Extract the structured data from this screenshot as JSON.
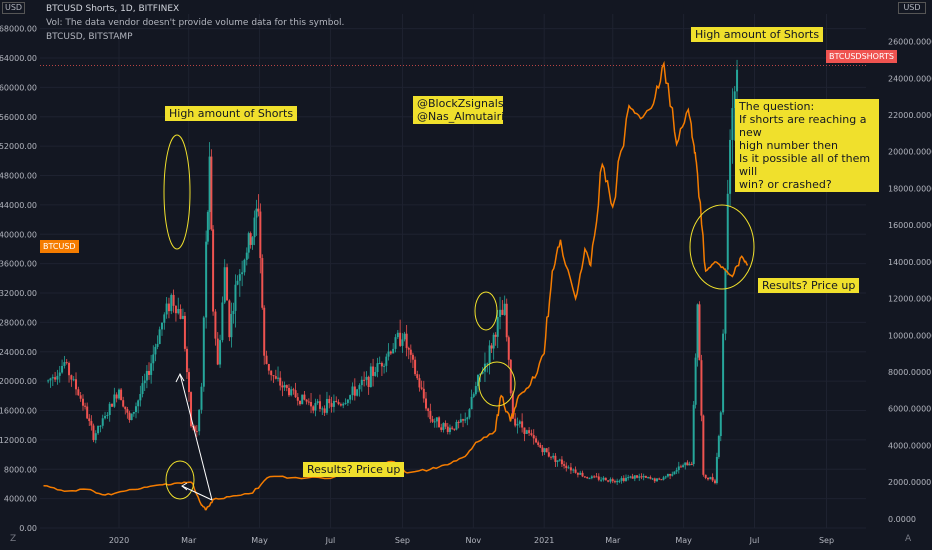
{
  "header": {
    "line1": "BTCUSD Shorts, 1D, BITFINEX",
    "line2": "Vol: The data vendor doesn't provide volume data for this symbol.",
    "line3": "BTCUSD, BITSTAMP"
  },
  "annotations": {
    "shorts_left": "High amount of Shorts",
    "shorts_right": "High amount of Shorts",
    "handles": [
      "@BlockZsignals",
      "@Nas_Almutairi"
    ],
    "question": [
      "The question:",
      "If shorts are reaching a new",
      "high number then",
      "Is it possible all of them will",
      "win? or crashed?"
    ],
    "results_left": "Results? Price up",
    "results_right": "Results? Price up"
  },
  "badges": {
    "btcusd": "BTCUSD",
    "shorts": "BTCUSDSHORTS",
    "unit_top": "USD",
    "unit_left": "USD",
    "corner_left": "Z",
    "corner_right": "A"
  },
  "colors": {
    "background": "#131722",
    "btcusd_line": "#f57c00",
    "candle_up": "#26a69a",
    "candle_down": "#ef5350",
    "callout": "#f0e02c",
    "badge_btcusd": "#f57c00",
    "badge_shorts": "#ef5350",
    "annotation_ring": "#f0e02c",
    "annotation_arrow": "#ffffff"
  },
  "chart_data": {
    "type": "line",
    "x_ticks": [
      "2020",
      "Mar",
      "May",
      "Jul",
      "Sep",
      "Nov",
      "2021",
      "Mar",
      "May",
      "Jul",
      "Sep"
    ],
    "x_tick_dates": [
      "2020-01-01",
      "2020-03-01",
      "2020-05-01",
      "2020-07-01",
      "2020-09-01",
      "2020-11-01",
      "2021-01-01",
      "2021-03-01",
      "2021-05-01",
      "2021-07-01",
      "2021-09-01"
    ],
    "x_range": [
      "2019-10-25",
      "2021-10-05"
    ],
    "left_axis": {
      "label": "USD",
      "range": [
        0,
        70000
      ],
      "ticks": [
        "0.00",
        "4000.00",
        "8000.00",
        "12000.00",
        "16000.00",
        "20000.00",
        "24000.00",
        "28000.00",
        "32000.00",
        "36000.00",
        "40000.00",
        "44000.00",
        "48000.00",
        "52000.00",
        "56000.00",
        "60000.00",
        "64000.00",
        "68000.00"
      ]
    },
    "right_axis": {
      "label": "USD",
      "range": [
        -500,
        27500
      ],
      "ticks": [
        "0.0000",
        "2000.0000",
        "4000.0000",
        "6000.0000",
        "8000.0000",
        "10000.0000",
        "12000.0000",
        "14000.0000",
        "16000.0000",
        "18000.0000",
        "20000.0000",
        "22000.0000",
        "24000.0000",
        "26000.0000"
      ]
    },
    "series": [
      {
        "name": "BTCUSDSHORTS",
        "kind": "candles",
        "axis": "left",
        "points": [
          [
            "2019-11-01",
            20000
          ],
          [
            "2019-11-15",
            22500
          ],
          [
            "2019-12-01",
            17000
          ],
          [
            "2019-12-10",
            12500
          ],
          [
            "2019-12-20",
            15000
          ],
          [
            "2020-01-01",
            19000
          ],
          [
            "2020-01-10",
            14500
          ],
          [
            "2020-01-25",
            20500
          ],
          [
            "2020-02-05",
            27000
          ],
          [
            "2020-02-15",
            31500
          ],
          [
            "2020-02-25",
            28500
          ],
          [
            "2020-03-03",
            14000
          ],
          [
            "2020-03-08",
            13000
          ],
          [
            "2020-03-12",
            19000
          ],
          [
            "2020-03-16",
            38000
          ],
          [
            "2020-03-19",
            49000
          ],
          [
            "2020-03-22",
            30000
          ],
          [
            "2020-03-26",
            22000
          ],
          [
            "2020-04-01",
            35000
          ],
          [
            "2020-04-05",
            27000
          ],
          [
            "2020-04-12",
            34000
          ],
          [
            "2020-04-20",
            38000
          ],
          [
            "2020-04-25",
            40000
          ],
          [
            "2020-04-30",
            44000
          ],
          [
            "2020-05-05",
            23000
          ],
          [
            "2020-05-15",
            20000
          ],
          [
            "2020-06-01",
            18000
          ],
          [
            "2020-06-20",
            16500
          ],
          [
            "2020-07-10",
            17000
          ],
          [
            "2020-08-01",
            20000
          ],
          [
            "2020-08-20",
            24000
          ],
          [
            "2020-09-01",
            26500
          ],
          [
            "2020-09-10",
            22000
          ],
          [
            "2020-09-25",
            15000
          ],
          [
            "2020-10-10",
            13500
          ],
          [
            "2020-10-25",
            14500
          ],
          [
            "2020-11-05",
            20000
          ],
          [
            "2020-11-15",
            24000
          ],
          [
            "2020-11-22",
            28000
          ],
          [
            "2020-11-28",
            29500
          ],
          [
            "2020-12-05",
            15000
          ],
          [
            "2020-12-15",
            13500
          ],
          [
            "2020-12-25",
            11500
          ],
          [
            "2021-01-05",
            10000
          ],
          [
            "2021-01-20",
            8500
          ],
          [
            "2021-02-05",
            7000
          ],
          [
            "2021-03-01",
            6500
          ],
          [
            "2021-03-20",
            7000
          ],
          [
            "2021-04-10",
            6500
          ],
          [
            "2021-04-25",
            8000
          ],
          [
            "2021-05-08",
            9000
          ],
          [
            "2021-05-13",
            31000
          ],
          [
            "2021-05-18",
            7000
          ],
          [
            "2021-05-28",
            6500
          ],
          [
            "2021-06-02",
            16000
          ],
          [
            "2021-06-06",
            36000
          ],
          [
            "2021-06-10",
            55000
          ],
          [
            "2021-06-16",
            63000
          ]
        ]
      },
      {
        "name": "BTCUSD",
        "kind": "line",
        "axis": "right",
        "points": [
          [
            "2019-10-28",
            1800
          ],
          [
            "2019-11-15",
            1500
          ],
          [
            "2019-12-05",
            1600
          ],
          [
            "2019-12-20",
            1300
          ],
          [
            "2020-01-05",
            1500
          ],
          [
            "2020-01-20",
            1650
          ],
          [
            "2020-02-05",
            1850
          ],
          [
            "2020-02-20",
            1950
          ],
          [
            "2020-03-03",
            2000
          ],
          [
            "2020-03-12",
            750
          ],
          [
            "2020-03-16",
            500
          ],
          [
            "2020-03-22",
            1050
          ],
          [
            "2020-04-05",
            1200
          ],
          [
            "2020-04-25",
            1400
          ],
          [
            "2020-05-10",
            2300
          ],
          [
            "2020-06-01",
            2250
          ],
          [
            "2020-07-01",
            2200
          ],
          [
            "2020-07-25",
            2850
          ],
          [
            "2020-08-10",
            3000
          ],
          [
            "2020-08-25",
            3100
          ],
          [
            "2020-09-05",
            2500
          ],
          [
            "2020-09-25",
            2700
          ],
          [
            "2020-10-10",
            2950
          ],
          [
            "2020-10-25",
            3400
          ],
          [
            "2020-11-05",
            4200
          ],
          [
            "2020-11-20",
            4800
          ],
          [
            "2020-11-25",
            6700
          ],
          [
            "2020-12-03",
            5300
          ],
          [
            "2020-12-10",
            6700
          ],
          [
            "2020-12-20",
            7300
          ],
          [
            "2021-01-01",
            9000
          ],
          [
            "2021-01-08",
            13500
          ],
          [
            "2021-01-15",
            15200
          ],
          [
            "2021-01-28",
            12000
          ],
          [
            "2021-02-05",
            14700
          ],
          [
            "2021-02-10",
            13800
          ],
          [
            "2021-02-20",
            19300
          ],
          [
            "2021-03-01",
            17000
          ],
          [
            "2021-03-15",
            22500
          ],
          [
            "2021-03-25",
            21800
          ],
          [
            "2021-04-05",
            22600
          ],
          [
            "2021-04-14",
            24800
          ],
          [
            "2021-04-25",
            20400
          ],
          [
            "2021-05-05",
            22300
          ],
          [
            "2021-05-10",
            20300
          ],
          [
            "2021-05-13",
            18800
          ],
          [
            "2021-05-20",
            13500
          ],
          [
            "2021-05-28",
            14000
          ],
          [
            "2021-06-05",
            13600
          ],
          [
            "2021-06-12",
            13200
          ],
          [
            "2021-06-20",
            14300
          ],
          [
            "2021-06-25",
            13800
          ]
        ]
      }
    ],
    "last_value": {
      "BTCUSDSHORTS": 63000
    }
  }
}
